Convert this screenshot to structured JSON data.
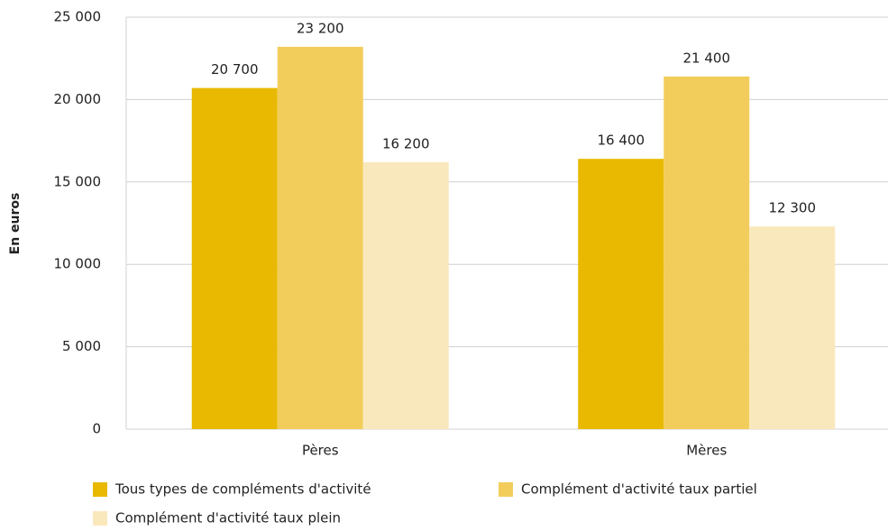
{
  "chart_data": {
    "type": "bar",
    "y_label": "En euros",
    "categories": [
      "Pères",
      "Mères"
    ],
    "series": [
      {
        "name": "Tous types de compléments d'activité",
        "color": "#e8b900",
        "values": [
          20700,
          16400
        ],
        "value_labels": [
          "20 700",
          "16 400"
        ]
      },
      {
        "name": "Complément d'activité taux partiel",
        "color": "#f2cd5c",
        "values": [
          23200,
          21400
        ],
        "value_labels": [
          "23 200",
          "21 400"
        ]
      },
      {
        "name": "Complément d'activité taux plein",
        "color": "#fae8bd",
        "values": [
          16200,
          12300
        ],
        "value_labels": [
          "16 200",
          "12 300"
        ]
      }
    ],
    "ylim": [
      0,
      25000
    ],
    "yticks": [
      0,
      {
        "value": 5000,
        "label": "5 000"
      },
      {
        "value": 10000,
        "label": "10 000"
      },
      {
        "value": 15000,
        "label": "15 000"
      },
      {
        "value": 20000,
        "label": "20 000"
      },
      {
        "value": 25000,
        "label": "25 000"
      }
    ],
    "grid": true
  }
}
